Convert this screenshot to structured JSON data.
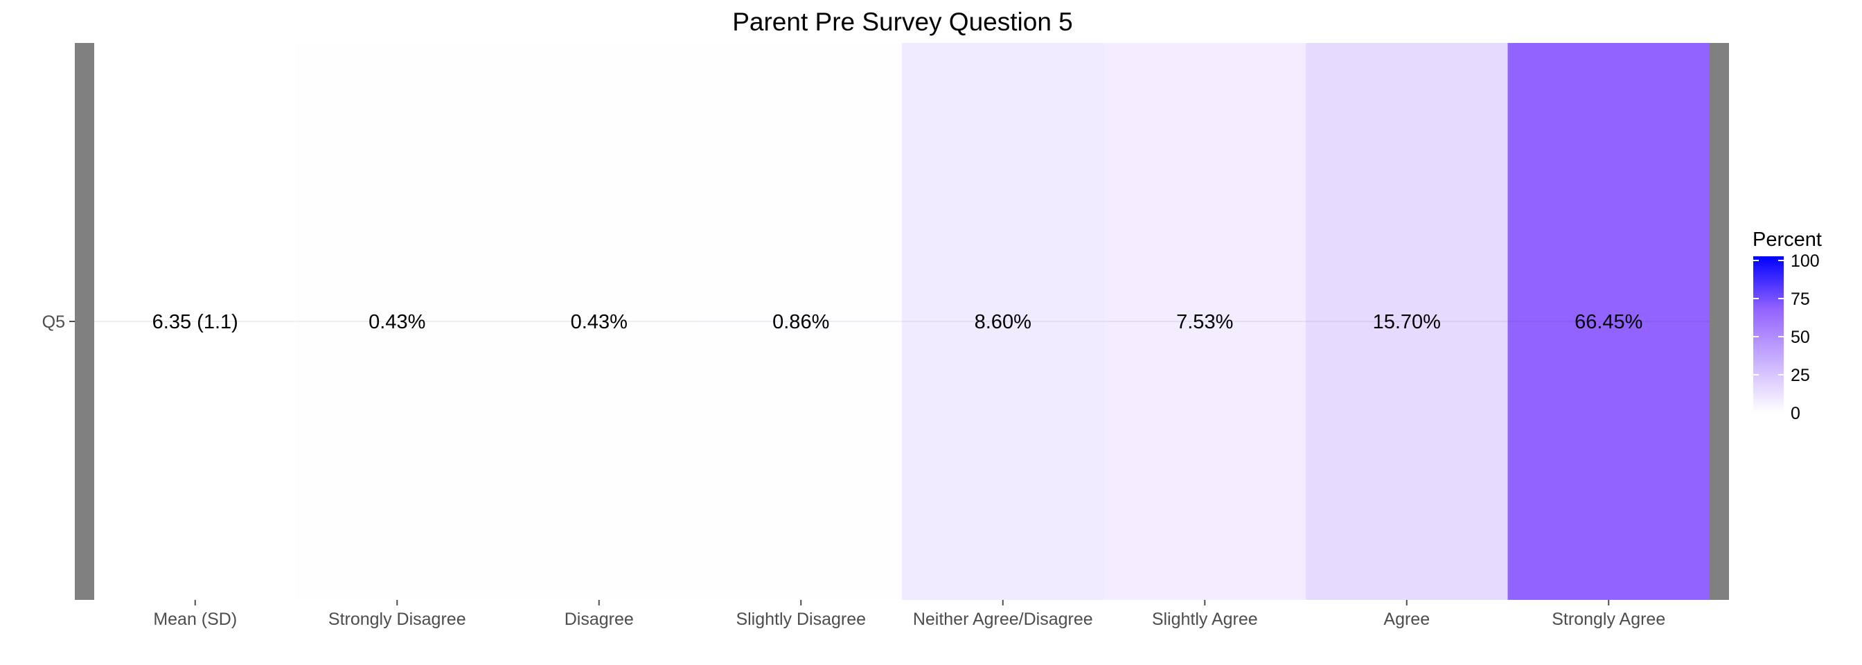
{
  "chart_data": {
    "type": "heatmap",
    "title": "Parent Pre Survey Question 5",
    "xlabel": "",
    "ylabel": "",
    "rows": [
      "Q5"
    ],
    "columns": [
      "Mean (SD)",
      "Strongly Disagree",
      "Disagree",
      "Slightly Disagree",
      "Neither Agree/Disagree",
      "Slightly Agree",
      "Agree",
      "Strongly Agree"
    ],
    "cells": [
      {
        "row": "Q5",
        "column": "Mean (SD)",
        "label": "6.35 (1.1)",
        "value": null
      },
      {
        "row": "Q5",
        "column": "Strongly Disagree",
        "label": "0.43%",
        "value": 0.43
      },
      {
        "row": "Q5",
        "column": "Disagree",
        "label": "0.43%",
        "value": 0.43
      },
      {
        "row": "Q5",
        "column": "Slightly Disagree",
        "label": "0.86%",
        "value": 0.86
      },
      {
        "row": "Q5",
        "column": "Neither Agree/Disagree",
        "label": "8.60%",
        "value": 8.6
      },
      {
        "row": "Q5",
        "column": "Slightly Agree",
        "label": "7.53%",
        "value": 7.53
      },
      {
        "row": "Q5",
        "column": "Agree",
        "label": "15.70%",
        "value": 15.7
      },
      {
        "row": "Q5",
        "column": "Strongly Agree",
        "label": "66.45%",
        "value": 66.45
      }
    ],
    "mean_sd": {
      "mean": 6.35,
      "sd": 1.1
    },
    "legend": {
      "title": "Percent",
      "ticks": [
        "100",
        "75",
        "50",
        "25",
        "0"
      ],
      "range": [
        0,
        100
      ],
      "low_color": "#ffffff",
      "high_color": "#0000ff",
      "position": "right"
    },
    "grid": false,
    "colors": {
      "frame": "#808080",
      "tick": "#4d4d4d",
      "text": "#000000"
    }
  }
}
